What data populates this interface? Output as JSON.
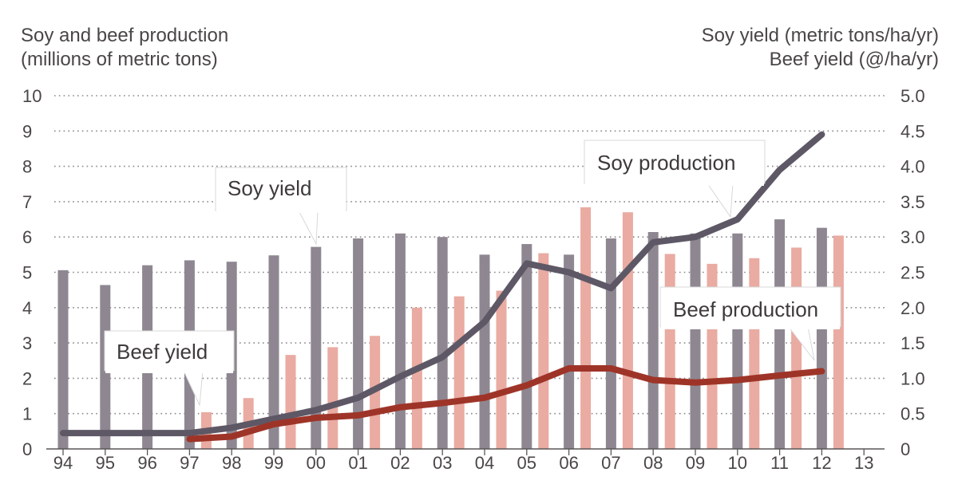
{
  "chart_data": {
    "type": "bar",
    "titles": {
      "left_line1": "Soy and beef production",
      "left_line2": "(millions of metric tons)",
      "right_line1": "Soy yield (metric tons/ha/yr)",
      "right_line2": "Beef yield (@/ha/yr)"
    },
    "categories": [
      "94",
      "95",
      "96",
      "97",
      "98",
      "99",
      "00",
      "01",
      "02",
      "03",
      "04",
      "05",
      "06",
      "07",
      "08",
      "09",
      "10",
      "11",
      "12",
      "13"
    ],
    "left_axis": {
      "ylim": [
        0,
        10
      ],
      "ticks": [
        "0",
        "1",
        "2",
        "3",
        "4",
        "5",
        "6",
        "7",
        "8",
        "9",
        "10"
      ]
    },
    "right_axis": {
      "ylim": [
        0,
        5
      ],
      "ticks": [
        "0",
        "0.5",
        "1.0",
        "1.5",
        "2.0",
        "2.5",
        "3.0",
        "3.5",
        "4.0",
        "4.5",
        "5.0"
      ]
    },
    "grid": true,
    "bar_series": [
      {
        "key": "soy_yield",
        "axis": "right",
        "color": "#8e8791",
        "values": [
          2.53,
          2.32,
          2.6,
          2.67,
          2.65,
          2.74,
          2.86,
          2.98,
          3.05,
          3.0,
          2.75,
          2.9,
          2.75,
          2.98,
          3.07,
          3.05,
          3.05,
          3.25,
          3.13,
          null
        ]
      },
      {
        "key": "beef_yield",
        "axis": "right",
        "color": "#e9aba2",
        "values": [
          null,
          null,
          null,
          0.52,
          0.72,
          1.33,
          1.44,
          1.6,
          2.0,
          2.16,
          2.24,
          2.77,
          3.42,
          3.35,
          2.76,
          2.62,
          2.7,
          2.85,
          3.02,
          null
        ]
      }
    ],
    "line_series": [
      {
        "key": "soy_production",
        "axis": "left",
        "color": "#5e5866",
        "values": [
          0.45,
          0.45,
          0.45,
          0.45,
          0.6,
          0.85,
          1.1,
          1.45,
          2.05,
          2.6,
          3.6,
          5.25,
          5.0,
          4.55,
          5.85,
          6.0,
          6.5,
          7.9,
          8.9,
          null
        ]
      },
      {
        "key": "beef_production",
        "axis": "left",
        "color": "#9e3428",
        "values": [
          null,
          null,
          null,
          0.28,
          0.35,
          0.7,
          0.88,
          0.95,
          1.18,
          1.3,
          1.45,
          1.8,
          2.28,
          2.28,
          1.95,
          1.88,
          1.95,
          2.08,
          2.2,
          null
        ]
      }
    ],
    "annotations": [
      {
        "key": "soy_yield_label",
        "text": "Soy yield",
        "color": "#3e3a3c"
      },
      {
        "key": "beef_yield_label",
        "text": "Beef yield",
        "color": "#3e3a3c"
      },
      {
        "key": "soy_production_label",
        "text": "Soy production",
        "color": "#3e3a3c"
      },
      {
        "key": "beef_production_label",
        "text": "Beef production",
        "color": "#3e3a3c"
      }
    ]
  }
}
